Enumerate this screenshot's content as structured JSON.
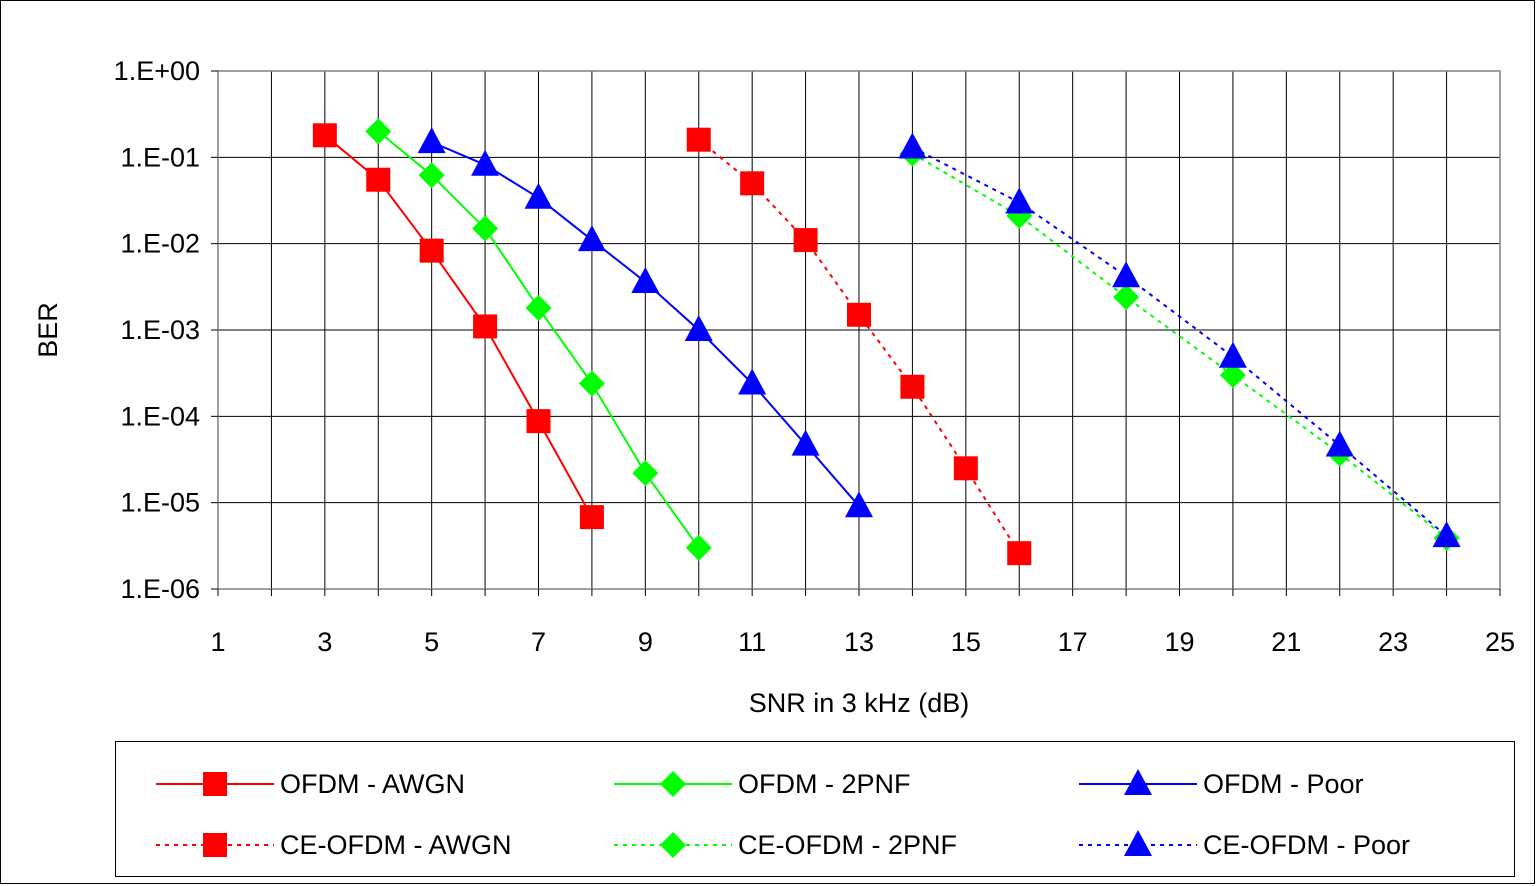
{
  "chart_data": {
    "type": "line",
    "title": "",
    "xlabel": "SNR in 3 kHz (dB)",
    "ylabel": "BER",
    "xlim": [
      1,
      25
    ],
    "ylim": [
      1e-06,
      1
    ],
    "yscale": "log",
    "x_ticks": [
      "1",
      "3",
      "5",
      "7",
      "9",
      "11",
      "13",
      "15",
      "17",
      "19",
      "21",
      "23",
      "25"
    ],
    "y_ticks": [
      "1.E+00",
      "1.E-01",
      "1.E-02",
      "1.E-03",
      "1.E-04",
      "1.E-05",
      "1.E-06"
    ],
    "grid": true,
    "legend_position": "bottom",
    "series": [
      {
        "name": "OFDM - AWGN",
        "color": "#ff0000",
        "marker": "square",
        "dash": "solid",
        "x": [
          3,
          4,
          5,
          6,
          7,
          8
        ],
        "y": [
          0.18,
          0.055,
          0.0083,
          0.0011,
          8.8e-05,
          6.8e-06
        ]
      },
      {
        "name": "OFDM - 2PNF",
        "color": "#00ff00",
        "marker": "diamond",
        "dash": "solid",
        "x": [
          4,
          5,
          6,
          7,
          8,
          9,
          10
        ],
        "y": [
          0.2,
          0.062,
          0.015,
          0.0018,
          0.00024,
          2.2e-05,
          3e-06
        ]
      },
      {
        "name": "OFDM - Poor",
        "color": "#0000ff",
        "marker": "triangle",
        "dash": "solid",
        "x": [
          5,
          6,
          7,
          8,
          9,
          10,
          11,
          12,
          13
        ],
        "y": [
          0.15,
          0.082,
          0.034,
          0.011,
          0.0036,
          0.001,
          0.00024,
          4.7e-05,
          9.1e-06
        ]
      },
      {
        "name": "CE-OFDM - AWGN",
        "color": "#ff0000",
        "marker": "square",
        "dash": "dotted",
        "x": [
          10,
          11,
          12,
          13,
          14,
          15,
          16
        ],
        "y": [
          0.16,
          0.05,
          0.011,
          0.0015,
          0.00022,
          2.5e-05,
          2.6e-06
        ]
      },
      {
        "name": "CE-OFDM - 2PNF",
        "color": "#00ff00",
        "marker": "diamond",
        "dash": "dotted",
        "x": [
          14,
          16,
          18,
          20,
          22,
          24
        ],
        "y": [
          0.11,
          0.021,
          0.0024,
          0.0003,
          3.7e-05,
          3.9e-06
        ]
      },
      {
        "name": "CE-OFDM - Poor",
        "color": "#0000ff",
        "marker": "triangle",
        "dash": "dotted",
        "x": [
          14,
          16,
          18,
          20,
          22,
          24
        ],
        "y": [
          0.13,
          0.03,
          0.0042,
          0.00049,
          4.6e-05,
          4.1e-06
        ]
      }
    ]
  }
}
